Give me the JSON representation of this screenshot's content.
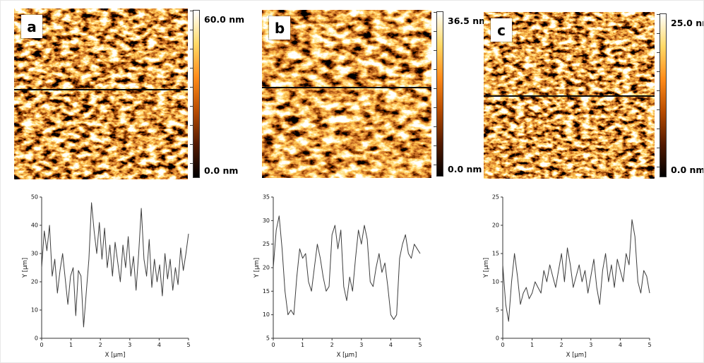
{
  "figure": {
    "panels": [
      {
        "label": "a",
        "scale_max": "60.0 nm",
        "scale_min": "0.0 nm"
      },
      {
        "label": "b",
        "scale_max": "36.5 nm",
        "scale_min": "0.0 nm"
      },
      {
        "label": "c",
        "scale_max": "25.0 nm",
        "scale_min": "0.0 nm"
      }
    ],
    "colorbar_colors": [
      "#ffffff",
      "#ffd966",
      "#ff8c1a",
      "#b84c00",
      "#541a00",
      "#000000"
    ],
    "trace_color": "#3d3d3d"
  },
  "chart_data": [
    {
      "type": "line",
      "panel": "a",
      "xlabel": "X [μm]",
      "ylabel": "Y [μm]",
      "xlim": [
        0,
        5
      ],
      "ylim": [
        0,
        50
      ],
      "xticks": [
        0,
        1,
        2,
        3,
        4,
        5
      ],
      "yticks": [
        0,
        10,
        20,
        30,
        40,
        50
      ],
      "y": [
        25,
        38,
        31,
        40,
        22,
        28,
        16,
        24,
        30,
        21,
        12,
        22,
        25,
        8,
        24,
        22,
        4,
        16,
        28,
        48,
        38,
        30,
        41,
        28,
        39,
        25,
        33,
        22,
        34,
        27,
        20,
        33,
        25,
        36,
        22,
        29,
        17,
        30,
        46,
        28,
        22,
        35,
        18,
        28,
        20,
        26,
        15,
        30,
        21,
        28,
        17,
        25,
        19,
        32,
        24,
        30,
        37
      ]
    },
    {
      "type": "line",
      "panel": "b",
      "xlabel": "X [μm]",
      "ylabel": "Y [μm]",
      "xlim": [
        0,
        5
      ],
      "ylim": [
        5,
        35
      ],
      "xticks": [
        0,
        1,
        2,
        3,
        4,
        5
      ],
      "yticks": [
        5,
        10,
        15,
        20,
        25,
        30,
        35
      ],
      "y": [
        20,
        28,
        31,
        24,
        15,
        10,
        11,
        10,
        18,
        24,
        22,
        23,
        17,
        15,
        20,
        25,
        22,
        18,
        15,
        16,
        27,
        29,
        24,
        28,
        16,
        13,
        18,
        15,
        22,
        28,
        25,
        29,
        26,
        17,
        16,
        20,
        23,
        19,
        21,
        16,
        10,
        9,
        10,
        22,
        25,
        27,
        23,
        22,
        25,
        24,
        23
      ]
    },
    {
      "type": "line",
      "panel": "c",
      "xlabel": "X [μm]",
      "ylabel": "Y [μm]",
      "xlim": [
        0,
        5
      ],
      "ylim": [
        0,
        25
      ],
      "xticks": [
        0,
        1,
        2,
        3,
        4,
        5
      ],
      "yticks": [
        0,
        5,
        10,
        15,
        20,
        25
      ],
      "y": [
        13,
        6,
        3,
        10,
        15,
        11,
        6,
        8,
        9,
        7,
        8,
        10,
        9,
        8,
        12,
        10,
        13,
        11,
        9,
        12,
        15,
        10,
        16,
        13,
        9,
        11,
        13,
        10,
        12,
        8,
        11,
        14,
        9,
        6,
        12,
        15,
        10,
        13,
        9,
        14,
        12,
        10,
        15,
        13,
        21,
        18,
        10,
        8,
        12,
        11,
        8
      ]
    }
  ]
}
